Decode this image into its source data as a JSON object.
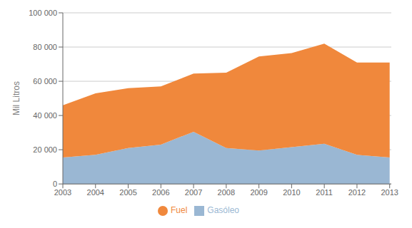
{
  "chart_data": {
    "type": "area",
    "stacked": true,
    "x": [
      2003,
      2004,
      2005,
      2006,
      2007,
      2008,
      2009,
      2010,
      2011,
      2012,
      2013
    ],
    "series": [
      {
        "name": "Gasóleo",
        "color": "#9AB7D3",
        "values": [
          15500,
          17000,
          21000,
          23000,
          30500,
          21000,
          19500,
          21500,
          23500,
          17000,
          15500
        ]
      },
      {
        "name": "Fuel",
        "color": "#F0883C",
        "values": [
          30500,
          36000,
          35000,
          34000,
          34000,
          44000,
          55000,
          55000,
          58500,
          54000,
          55500
        ]
      }
    ],
    "ylabel": "Mil Litros",
    "xlim": [
      2003,
      2013.05
    ],
    "xticks": [
      2003,
      2004,
      2005,
      2006,
      2007,
      2008,
      2009,
      2010,
      2011,
      2012,
      2013
    ],
    "ylim": [
      0,
      100000
    ],
    "yticks": [
      0,
      {
        "value": 20000,
        "label": "20 000"
      },
      {
        "value": 40000,
        "label": "40 000"
      },
      {
        "value": 60000,
        "label": "60 000"
      },
      {
        "value": 80000,
        "label": "80 000"
      },
      {
        "value": 100000,
        "label": "100 000"
      }
    ],
    "grid": true,
    "legend": "bottom"
  }
}
